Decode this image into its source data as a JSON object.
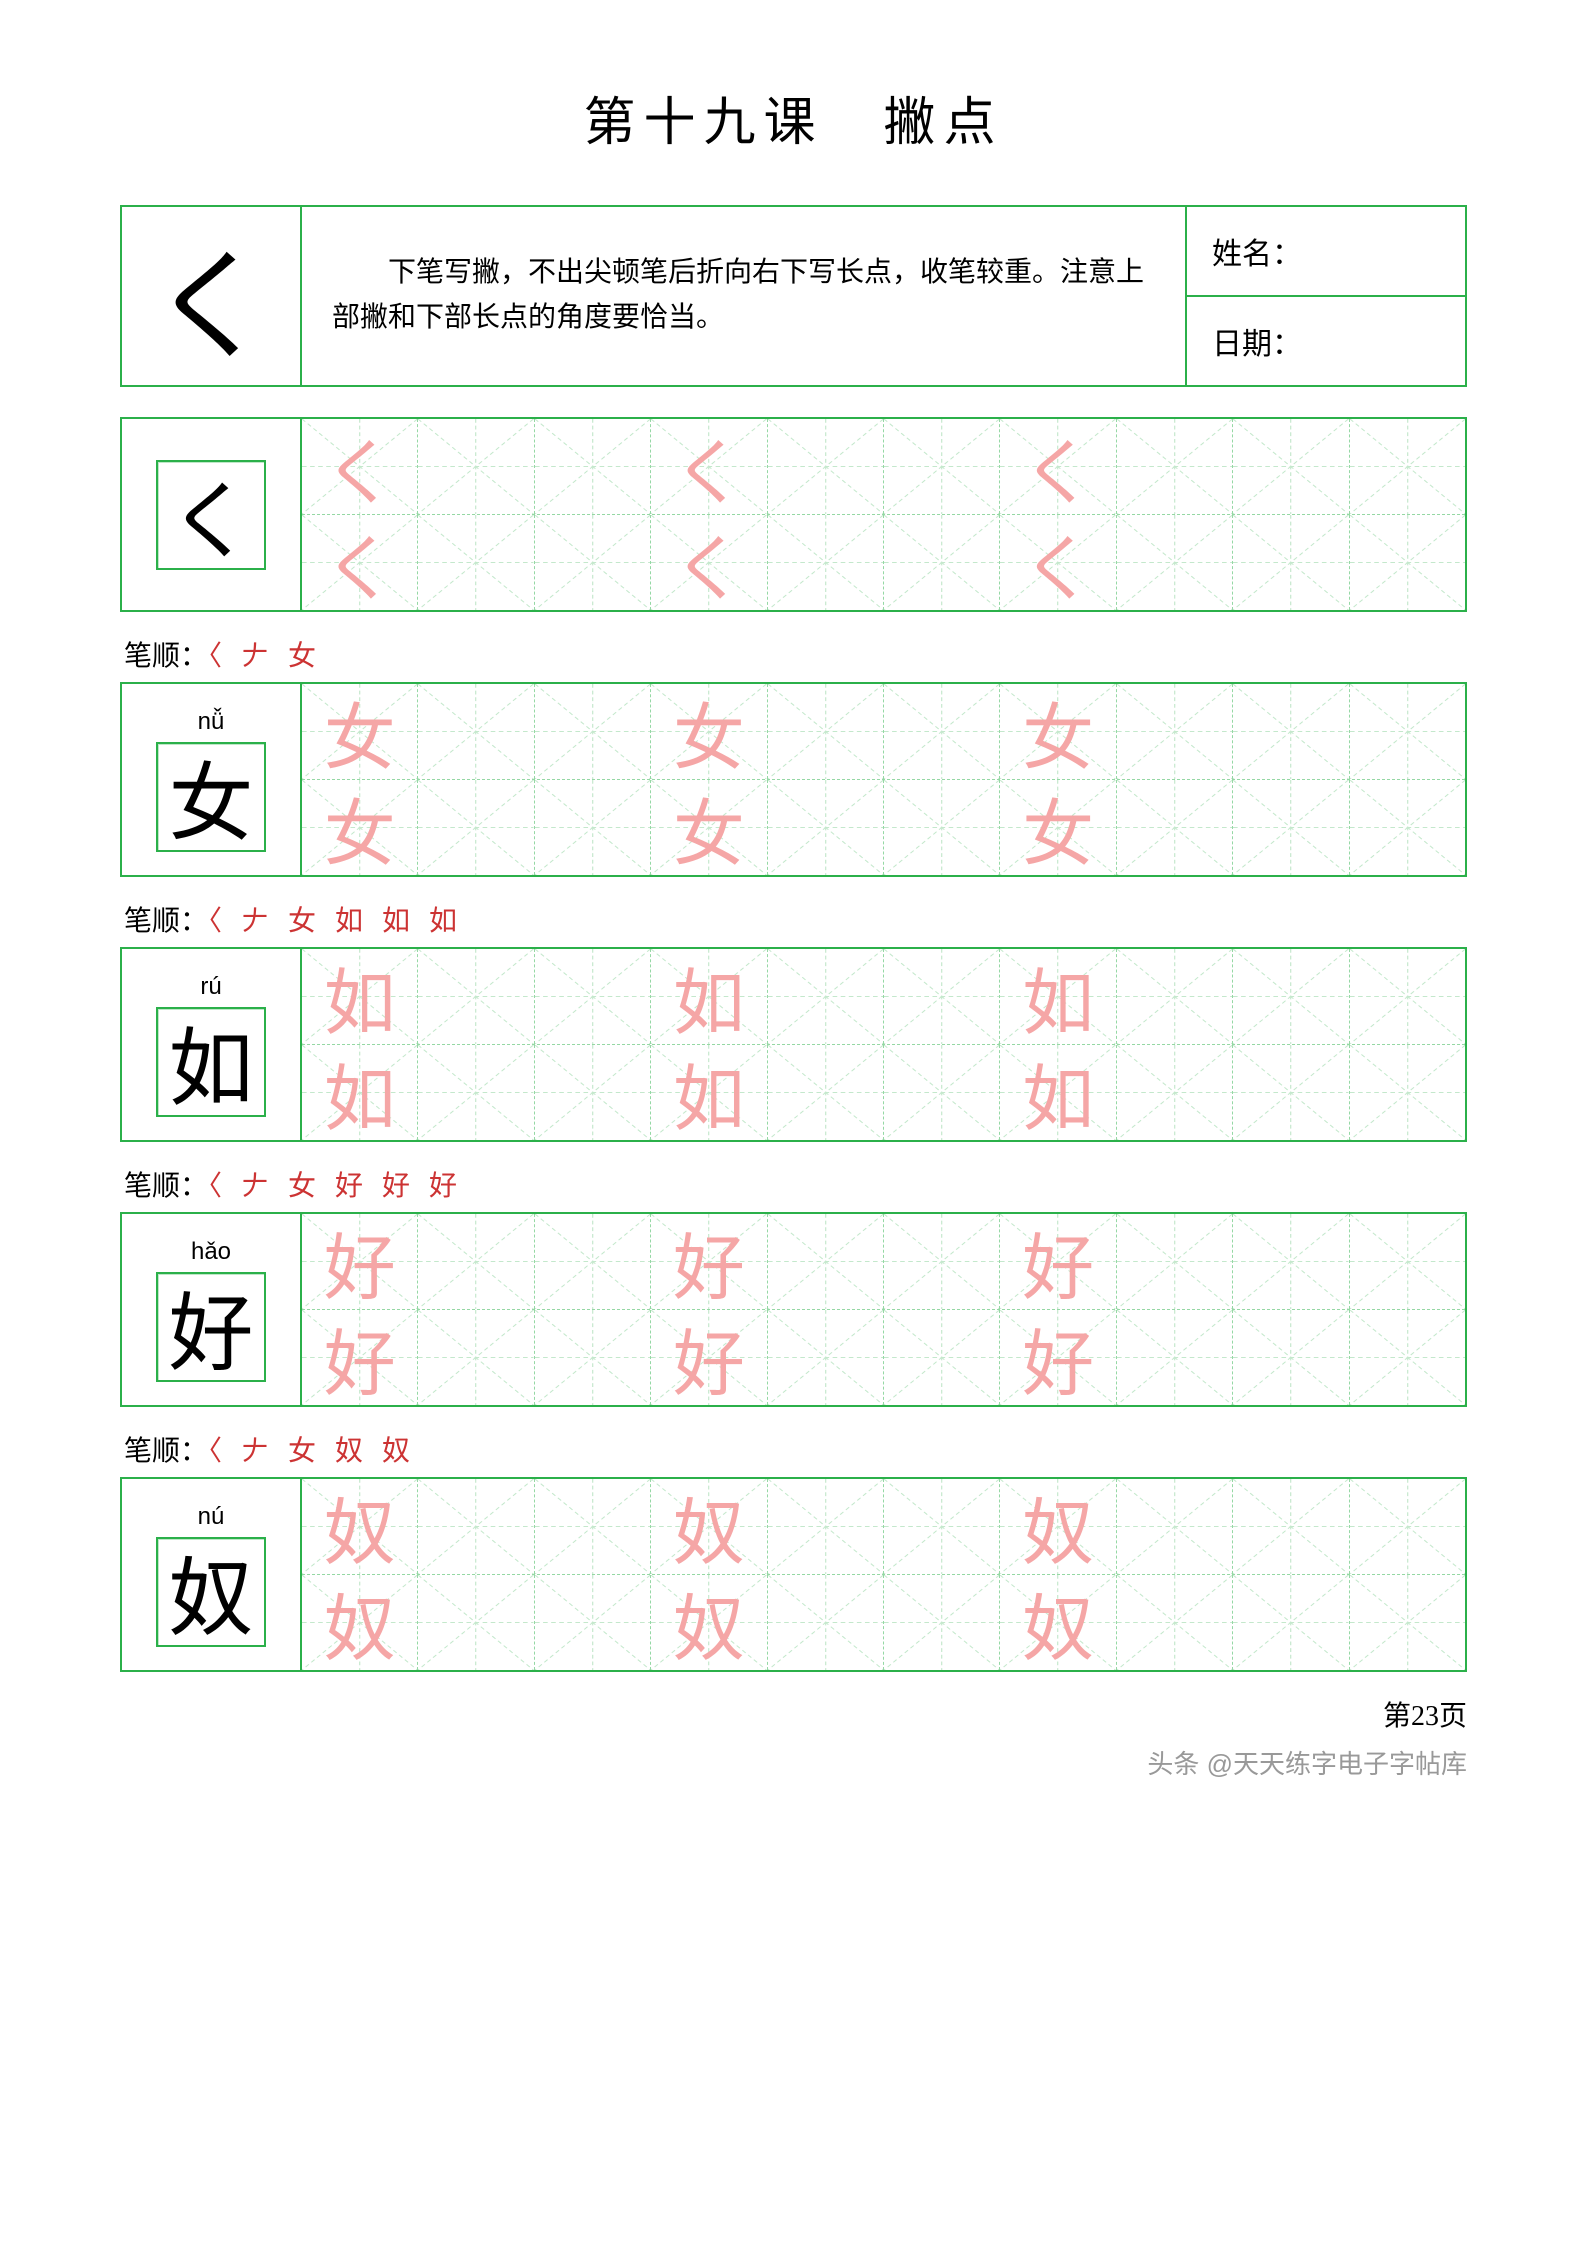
{
  "title": "第十九课　撇点",
  "header": {
    "stroke_glyph": "く",
    "description": "下笔写撇，不出尖顿笔后折向右下写长点，收笔较重。注意上部撇和下部长点的角度要恰当。",
    "name_label": "姓名：",
    "date_label": "日期："
  },
  "colors": {
    "border": "#2bb04a",
    "guide": "#c4e8cc",
    "guide_dash": "#95d8a4",
    "trace": "#f5a6a6",
    "stroke_red": "#cc3333",
    "text": "#000000",
    "background": "#ffffff"
  },
  "grid": {
    "rows_per_block": 2,
    "cols": 10,
    "trace_positions": [
      0,
      3,
      6
    ]
  },
  "blocks": [
    {
      "pinyin": "",
      "char": "く",
      "stroke_order_label": "",
      "stroke_order": ""
    },
    {
      "pinyin": "nǚ",
      "char": "女",
      "stroke_order_label": "笔顺：",
      "stroke_order": "〈 𠂇 女"
    },
    {
      "pinyin": "rú",
      "char": "如",
      "stroke_order_label": "笔顺：",
      "stroke_order": "〈 𠂇 女 如 如 如"
    },
    {
      "pinyin": "hǎo",
      "char": "好",
      "stroke_order_label": "笔顺：",
      "stroke_order": "〈 𠂇 女 好 好 好"
    },
    {
      "pinyin": "nú",
      "char": "奴",
      "stroke_order_label": "笔顺：",
      "stroke_order": "〈 𠂇 女 奴 奴"
    }
  ],
  "page_number": "第23页",
  "watermark": "头条 @天天练字电子字帖库"
}
